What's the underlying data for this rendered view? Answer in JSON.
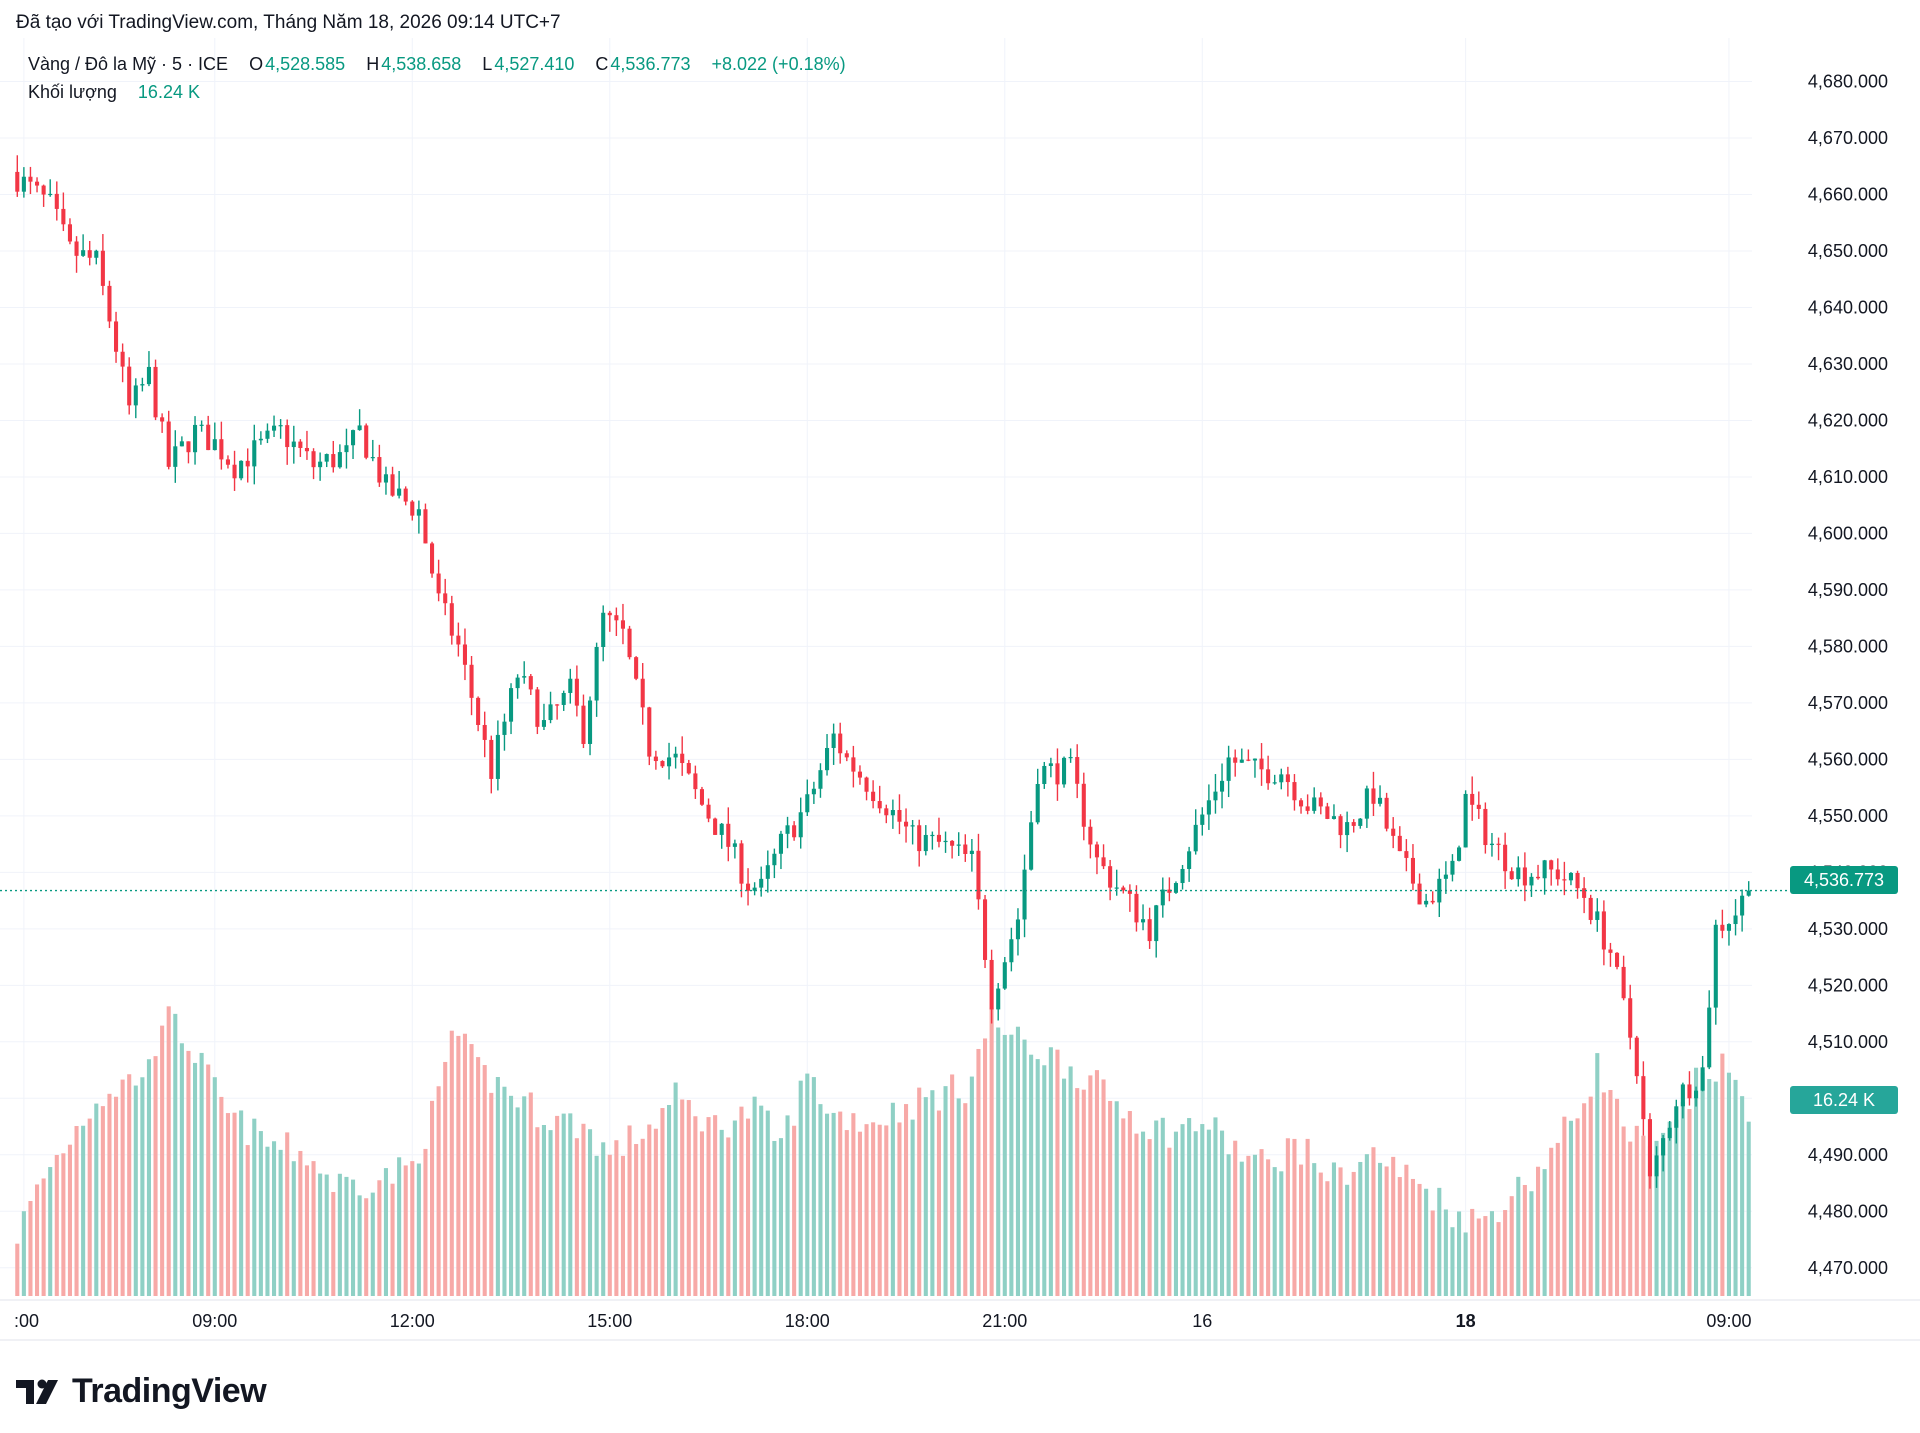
{
  "header": {
    "attribution": "Đã tạo với TradingView.com, Tháng Năm 18, 2026 09:14 UTC+7"
  },
  "legend": {
    "symbol": "Vàng / Đô la Mỹ · 5 · ICE",
    "open_label": "O",
    "open": "4,528.585",
    "high_label": "H",
    "high": "4,538.658",
    "low_label": "L",
    "low": "4,527.410",
    "close_label": "C",
    "close": "4,536.773",
    "change": "+8.022 (+0.18%)",
    "volume_label": "Khối lượng",
    "volume": "16.24 K"
  },
  "price_tag": "4,536.773",
  "volume_tag": "16.24 K",
  "brand": {
    "name": "TradingView"
  },
  "colors": {
    "up": "#089981",
    "down": "#f23645",
    "vol_up": "#8fd0c5",
    "vol_down": "#f7a9a7",
    "grid": "#f0f3fa",
    "text": "#131722"
  },
  "chart_data": {
    "type": "candlestick",
    "title": "Vàng / Đô la Mỹ · 5 · ICE",
    "y_tick_labels": [
      "4,470.000",
      "4,480.000",
      "4,490.000",
      "4,500.000",
      "4,510.000",
      "4,520.000",
      "4,530.000",
      "4,540.000",
      "4,550.000",
      "4,560.000",
      "4,570.000",
      "4,580.000",
      "4,590.000",
      "4,600.000",
      "4,610.000",
      "4,620.000",
      "4,630.000",
      "4,640.000",
      "4,650.000",
      "4,660.000",
      "4,670.000",
      "4,680.000"
    ],
    "ylim": [
      4465,
      4687
    ],
    "x_tick_labels": [
      ":00",
      "09:00",
      "12:00",
      "15:00",
      "18:00",
      "21:00",
      "16",
      "18",
      "09:00"
    ],
    "x_tick_bold": [
      false,
      false,
      false,
      false,
      false,
      false,
      false,
      true,
      false
    ],
    "x_tick_index": [
      1,
      30,
      60,
      90,
      120,
      150,
      180,
      220,
      260
    ],
    "last_price": 4536.773,
    "grid": true,
    "candle_key": [
      [
        0,
        4663
      ],
      [
        5,
        4658
      ],
      [
        8,
        4650
      ],
      [
        12,
        4648
      ],
      [
        15,
        4633
      ],
      [
        17,
        4622
      ],
      [
        20,
        4628
      ],
      [
        23,
        4612
      ],
      [
        27,
        4618
      ],
      [
        30,
        4616
      ],
      [
        33,
        4612
      ],
      [
        40,
        4618
      ],
      [
        45,
        4612
      ],
      [
        50,
        4614
      ],
      [
        52,
        4618
      ],
      [
        56,
        4608
      ],
      [
        61,
        4604
      ],
      [
        64,
        4588
      ],
      [
        67,
        4580
      ],
      [
        72,
        4558
      ],
      [
        76,
        4575
      ],
      [
        80,
        4566
      ],
      [
        84,
        4572
      ],
      [
        86,
        4565
      ],
      [
        89,
        4585
      ],
      [
        92,
        4582
      ],
      [
        96,
        4562
      ],
      [
        100,
        4560
      ],
      [
        104,
        4552
      ],
      [
        108,
        4545
      ],
      [
        111,
        4538
      ],
      [
        113,
        4537
      ],
      [
        116,
        4545
      ],
      [
        120,
        4552
      ],
      [
        124,
        4564
      ],
      [
        126,
        4560
      ],
      [
        132,
        4552
      ],
      [
        136,
        4546
      ],
      [
        140,
        4545
      ],
      [
        145,
        4542
      ],
      [
        148,
        4518
      ],
      [
        150,
        4525
      ],
      [
        152,
        4532
      ],
      [
        155,
        4558
      ],
      [
        160,
        4558
      ],
      [
        164,
        4542
      ],
      [
        168,
        4536
      ],
      [
        172,
        4530
      ],
      [
        178,
        4545
      ],
      [
        184,
        4560
      ],
      [
        188,
        4558
      ],
      [
        192,
        4558
      ],
      [
        196,
        4552
      ],
      [
        202,
        4548
      ],
      [
        206,
        4554
      ],
      [
        210,
        4542
      ],
      [
        214,
        4535
      ],
      [
        218,
        4540
      ],
      [
        220,
        4553
      ],
      [
        224,
        4545
      ],
      [
        228,
        4540
      ],
      [
        234,
        4540
      ],
      [
        238,
        4536
      ],
      [
        242,
        4526
      ],
      [
        246,
        4506
      ],
      [
        248,
        4485
      ],
      [
        252,
        4500
      ],
      [
        256,
        4505
      ],
      [
        258,
        4530
      ],
      [
        261,
        4533
      ],
      [
        263,
        4537
      ]
    ],
    "volume_key": [
      [
        0,
        4476
      ],
      [
        4,
        4486
      ],
      [
        12,
        4500
      ],
      [
        20,
        4505
      ],
      [
        22,
        4515
      ],
      [
        26,
        4510
      ],
      [
        32,
        4497
      ],
      [
        38,
        4492
      ],
      [
        44,
        4490
      ],
      [
        48,
        4485
      ],
      [
        52,
        4485
      ],
      [
        56,
        4486
      ],
      [
        60,
        4488
      ],
      [
        64,
        4500
      ],
      [
        66,
        4512
      ],
      [
        70,
        4505
      ],
      [
        76,
        4500
      ],
      [
        80,
        4497
      ],
      [
        86,
        4495
      ],
      [
        90,
        4490
      ],
      [
        96,
        4495
      ],
      [
        100,
        4500
      ],
      [
        106,
        4495
      ],
      [
        112,
        4498
      ],
      [
        116,
        4492
      ],
      [
        120,
        4504
      ],
      [
        124,
        4497
      ],
      [
        130,
        4496
      ],
      [
        138,
        4500
      ],
      [
        144,
        4502
      ],
      [
        148,
        4514
      ],
      [
        152,
        4510
      ],
      [
        158,
        4507
      ],
      [
        162,
        4504
      ],
      [
        166,
        4500
      ],
      [
        172,
        4495
      ],
      [
        176,
        4494
      ],
      [
        180,
        4496
      ],
      [
        186,
        4490
      ],
      [
        190,
        4488
      ],
      [
        194,
        4492
      ],
      [
        200,
        4486
      ],
      [
        206,
        4490
      ],
      [
        210,
        4487
      ],
      [
        214,
        4484
      ],
      [
        218,
        4480
      ],
      [
        222,
        4478
      ],
      [
        226,
        4482
      ],
      [
        230,
        4486
      ],
      [
        234,
        4492
      ],
      [
        238,
        4500
      ],
      [
        240,
        4506
      ],
      [
        244,
        4495
      ],
      [
        248,
        4490
      ],
      [
        252,
        4495
      ],
      [
        256,
        4505
      ],
      [
        260,
        4505
      ],
      [
        263,
        4496
      ]
    ]
  }
}
